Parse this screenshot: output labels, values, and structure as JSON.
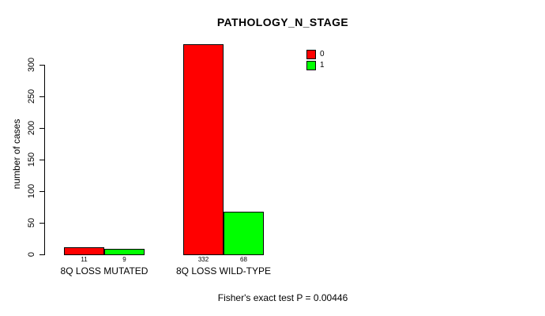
{
  "title": "PATHOLOGY_N_STAGE",
  "y_axis": {
    "label": "number of cases",
    "ticks": [
      0,
      50,
      100,
      150,
      200,
      250,
      300
    ],
    "lim": [
      0,
      300
    ]
  },
  "legend": {
    "items": [
      {
        "label": "0",
        "color": "#FF0000"
      },
      {
        "label": "1",
        "color": "#00FF00"
      }
    ]
  },
  "footer": "Fisher's exact test P = 0.00446",
  "chart_data": {
    "type": "bar",
    "title": "PATHOLOGY_N_STAGE",
    "categories": [
      "8Q LOSS MUTATED",
      "8Q LOSS WILD-TYPE"
    ],
    "series": [
      {
        "name": "0",
        "color": "#FF0000",
        "values": [
          11,
          332
        ]
      },
      {
        "name": "1",
        "color": "#00FF00",
        "values": [
          9,
          68
        ]
      }
    ],
    "bar_value_labels": [
      [
        11,
        9
      ],
      [
        332,
        68
      ]
    ],
    "xlabel": "",
    "ylabel": "number of cases",
    "ylim": [
      0,
      300
    ],
    "yticks": [
      0,
      50,
      100,
      150,
      200,
      250,
      300
    ],
    "grid": false,
    "legend_position": "top-right",
    "annotation": "Fisher's exact test P = 0.00446"
  }
}
